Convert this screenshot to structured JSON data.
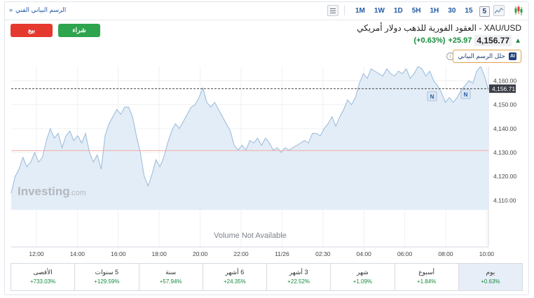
{
  "toolbar": {
    "advanced_chart_link": "الرسم البياني الفني",
    "link_chevron": "»",
    "timeframes": [
      "1M",
      "1W",
      "1D",
      "5H",
      "1H",
      "30",
      "15",
      "5",
      "1"
    ],
    "active_timeframe": "5"
  },
  "actions": {
    "sell_label": "بيع",
    "buy_label": "شراء"
  },
  "instrument": {
    "title": "XAU/USD - العقود الفورية للذهب دولار أمريكي",
    "price": "4,156.77",
    "change": "+25.97",
    "change_pct": "(+0.63%)",
    "analyze_label": "حلل الرسم البياني",
    "ai_badge": "AI",
    "info_glyph": "i"
  },
  "colors": {
    "line": "#9fbedd",
    "fill": "#e3edf7",
    "current_price_line": "#444444",
    "prev_close_line": "#f2a9a3",
    "up": "#168a3b",
    "sell": "#e5392f",
    "buy": "#2ea44f"
  },
  "chart_data": {
    "type": "area",
    "x_tick_labels": [
      "12:00",
      "14:00",
      "16:00",
      "18:00",
      "20:00",
      "22:00",
      "11/26",
      "02:30",
      "04:00",
      "06:00",
      "08:00",
      "10:00"
    ],
    "y_tick_labels": [
      "4,160.00",
      "4,150.00",
      "4,140.00",
      "4,130.00",
      "4,120.00",
      "4,110.00"
    ],
    "ylim": [
      4106,
      4166
    ],
    "current_price": 4156.71,
    "current_price_label": "4,156.71",
    "previous_close": 4130.8,
    "watermark": "Investing",
    "watermark_suffix": ".com",
    "volume_note": "Volume Not Available",
    "news_markers": [
      "N",
      "N"
    ],
    "series": [
      4113,
      4120,
      4123,
      4128,
      4124,
      4126,
      4130,
      4126,
      4128,
      4135,
      4140,
      4136,
      4138,
      4132,
      4137,
      4139,
      4135,
      4137,
      4134,
      4138,
      4130,
      4126,
      4129,
      4123,
      4137,
      4142,
      4145,
      4148,
      4146,
      4149,
      4149,
      4145,
      4137,
      4130,
      4120,
      4116,
      4121,
      4127,
      4124,
      4128,
      4134,
      4139,
      4142,
      4140,
      4143,
      4146,
      4149,
      4150,
      4153,
      4157,
      4151,
      4149,
      4151,
      4148,
      4145,
      4142,
      4139,
      4133,
      4131,
      4133,
      4131,
      4135,
      4134,
      4136,
      4133,
      4136,
      4134,
      4131,
      4132,
      4130,
      4132,
      4131,
      4132,
      4133,
      4134,
      4135,
      4134,
      4138,
      4138,
      4137,
      4140,
      4142,
      4145,
      4141,
      4145,
      4148,
      4152,
      4150,
      4153,
      4159,
      4163,
      4161,
      4165,
      4164,
      4163,
      4162,
      4165,
      4163,
      4162,
      4164,
      4163,
      4165,
      4161,
      4163,
      4166,
      4165,
      4162,
      4164,
      4160,
      4158,
      4155,
      4151,
      4153,
      4151,
      4153,
      4156,
      4158,
      4160,
      4159,
      4164,
      4166,
      4162,
      4156
    ]
  },
  "performance": [
    {
      "label": "يوم",
      "value": "+0.63%"
    },
    {
      "label": "أسبوع",
      "value": "+1.84%"
    },
    {
      "label": "شهر",
      "value": "+1.09%"
    },
    {
      "label": "3 أشهر",
      "value": "+22.52%"
    },
    {
      "label": "6 أشهر",
      "value": "+24.35%"
    },
    {
      "label": "سنة",
      "value": "+57.94%"
    },
    {
      "label": "5 سنوات",
      "value": "+129.59%"
    },
    {
      "label": "الأقصى",
      "value": "+733.03%"
    }
  ]
}
